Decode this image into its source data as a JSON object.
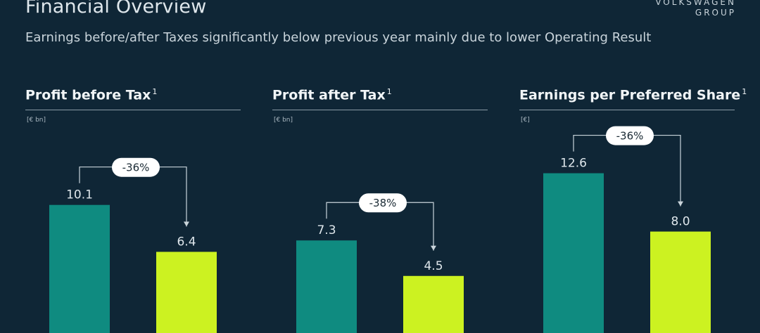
{
  "header": {
    "title": "Financial Overview",
    "subtitle": "Earnings before/after Taxes significantly below previous year mainly due to lower Operating Result",
    "logo_line1": "VOLKSWAGEN",
    "logo_line2": "GROUP"
  },
  "colors": {
    "background": "#0f2636",
    "prior_bar": "#0f8b80",
    "current_bar": "#ccf221",
    "pill_bg": "#ffffff"
  },
  "chart_data": [
    {
      "type": "bar",
      "title": "Profit before Tax",
      "title_footnote": "1",
      "unit": "[€ bn]",
      "values": [
        10.1,
        6.4
      ],
      "labels": [
        "10.1",
        "6.4"
      ],
      "change": "-36%"
    },
    {
      "type": "bar",
      "title": "Profit after Tax",
      "title_footnote": "1",
      "unit": "[€ bn]",
      "values": [
        7.3,
        4.5
      ],
      "labels": [
        "7.3",
        "4.5"
      ],
      "change": "-38%"
    },
    {
      "type": "bar",
      "title": "Earnings per Preferred Share",
      "title_footnote": "1",
      "unit": "[€]",
      "values": [
        12.6,
        8.0
      ],
      "labels": [
        "12.6",
        "8.0"
      ],
      "change": "-36%"
    }
  ]
}
